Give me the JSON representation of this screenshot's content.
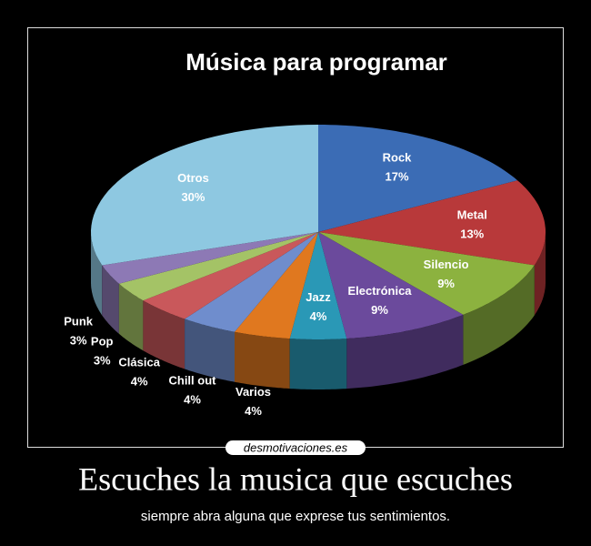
{
  "chart_data": {
    "type": "pie3d",
    "title": "Música para programar",
    "categories": [
      "Rock",
      "Metal",
      "Silencio",
      "Electrónica",
      "Jazz",
      "Varios",
      "Chill out",
      "Clásica",
      "Pop",
      "Punk",
      "Otros"
    ],
    "values": [
      17,
      13,
      9,
      9,
      4,
      4,
      4,
      4,
      3,
      3,
      30
    ],
    "value_labels": [
      "17%",
      "13%",
      "9%",
      "9%",
      "4%",
      "4%",
      "4%",
      "4%",
      "3%",
      "3%",
      "30%"
    ],
    "colors": [
      "#3b6cb5",
      "#b8393a",
      "#8cb23f",
      "#6b4a9c",
      "#2a98b6",
      "#e0781f",
      "#6f8dcd",
      "#c9585b",
      "#a4c366",
      "#8d79b5",
      "#8ec8e1"
    ]
  },
  "poster": {
    "heading": "Escuches la musica que escuches",
    "caption": "siempre abra alguna que exprese tus sentimientos.",
    "watermark": "desmotivaciones.es"
  }
}
